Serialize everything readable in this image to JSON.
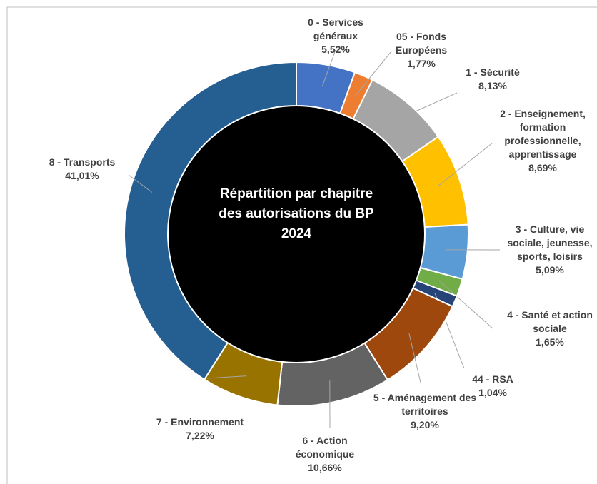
{
  "chart_data": {
    "type": "donut",
    "title": "Répartition par chapitre des autorisations du BP 2024",
    "categories": [
      "0 - Services généraux",
      "05 - Fonds Européens",
      "1 - Sécurité",
      "2 - Enseignement, formation professionnelle, apprentissage",
      "3 - Culture, vie sociale, jeunesse, sports, loisirs",
      "4 - Santé et action sociale",
      "44 - RSA",
      "5 - Aménagement des territoires",
      "6 - Action économique",
      "7 - Environnement",
      "8 - Transports"
    ],
    "values": [
      5.52,
      1.77,
      8.13,
      8.69,
      5.09,
      1.65,
      1.04,
      9.2,
      10.66,
      7.22,
      41.01
    ],
    "value_labels": [
      "5,52%",
      "1,77%",
      "8,13%",
      "8,69%",
      "5,09%",
      "1,65%",
      "1,04%",
      "9,20%",
      "10,66%",
      "7,22%",
      "41,01%"
    ],
    "colors": [
      "#4472c4",
      "#ed7d31",
      "#a5a5a5",
      "#ffc000",
      "#5b9bd5",
      "#70ad47",
      "#264478",
      "#9e480e",
      "#636363",
      "#997300",
      "#255e91"
    ]
  }
}
